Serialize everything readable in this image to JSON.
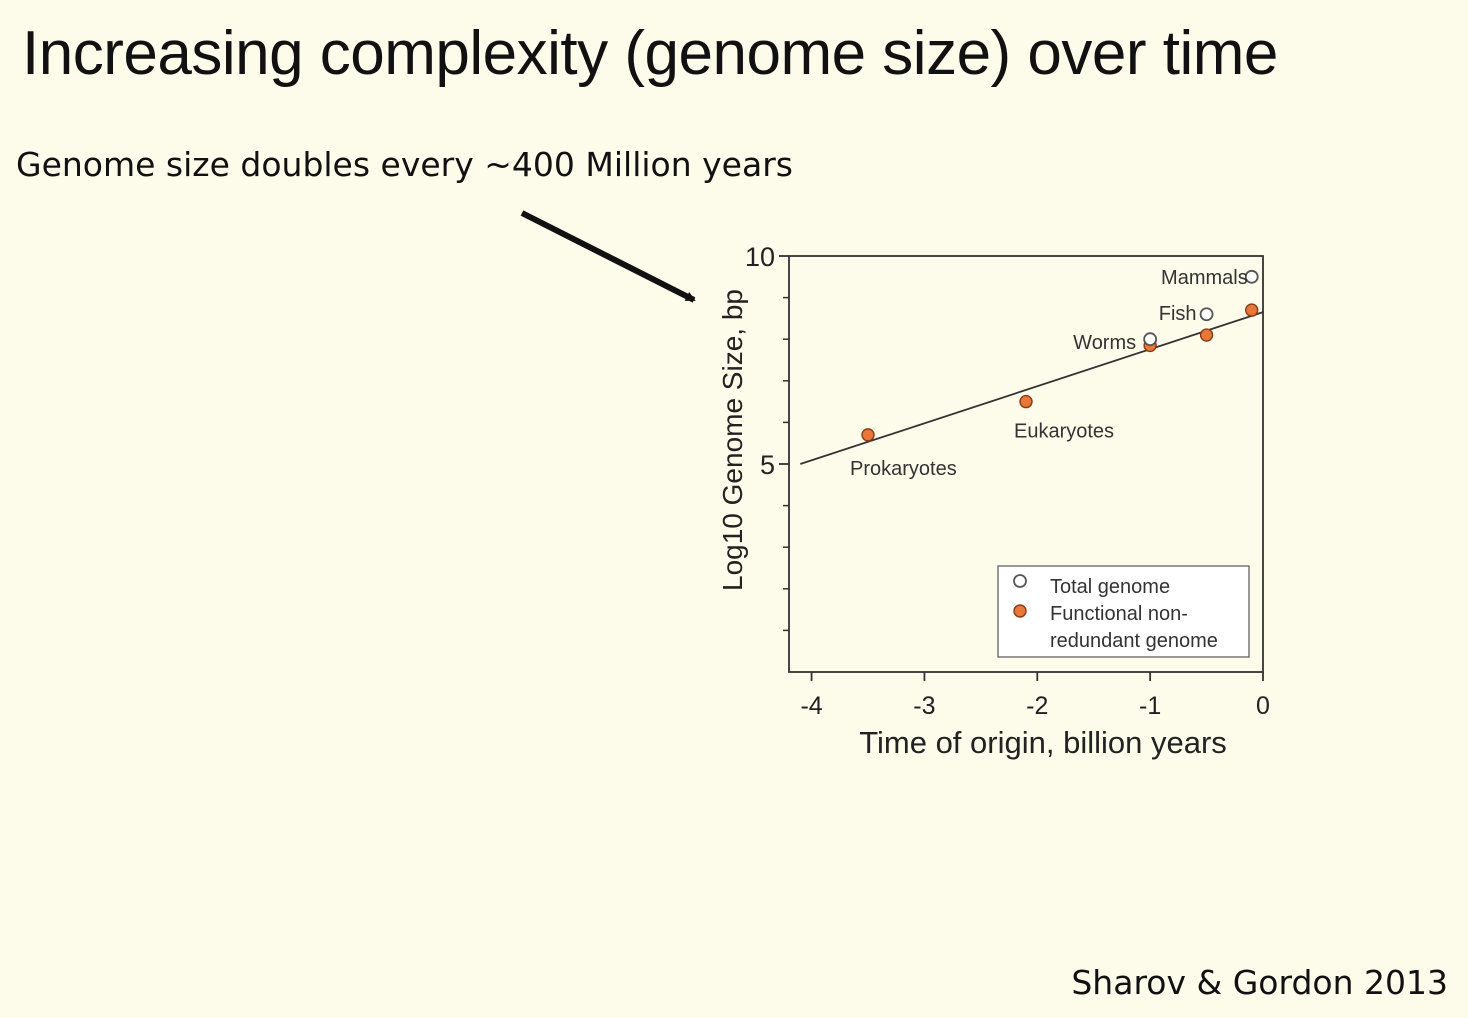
{
  "slide": {
    "title": "Increasing complexity (genome size) over time",
    "subtitle": "Genome size doubles every ~400 Million years",
    "citation": "Sharov & Gordon 2013"
  },
  "chart_data": {
    "type": "scatter",
    "xlabel": "Time of origin, billion years",
    "ylabel": "Log10 Genome Size, bp",
    "xlim": [
      -4.2,
      0
    ],
    "ylim": [
      0,
      10
    ],
    "x_ticks": [
      -4,
      -3,
      -2,
      -1,
      0
    ],
    "x_tick_labels": [
      "-4",
      "-3",
      "-2",
      "-1",
      "0"
    ],
    "y_ticks": [
      5,
      10
    ],
    "y_tick_labels": [
      "5",
      "10"
    ],
    "y_minor_ticks": [
      1,
      2,
      3,
      4,
      6,
      7,
      8,
      9
    ],
    "grid": false,
    "legend_position": "bottom-right",
    "series": [
      {
        "name": "Total genome",
        "marker": "open-circle",
        "color": "#ffffff",
        "points": [
          {
            "x": -1.0,
            "y": 8.0,
            "label": "Worms"
          },
          {
            "x": -0.5,
            "y": 8.6,
            "label": "Fish"
          },
          {
            "x": -0.1,
            "y": 9.5,
            "label": "Mammals"
          }
        ]
      },
      {
        "name": "Functional non-redundant genome",
        "legend_lines": [
          "Functional non-",
          "redundant genome"
        ],
        "marker": "filled-circle",
        "color": "#e8773a",
        "points": [
          {
            "x": -3.5,
            "y": 5.7,
            "label": "Prokaryotes"
          },
          {
            "x": -2.1,
            "y": 6.5,
            "label": "Eukaryotes"
          },
          {
            "x": -1.0,
            "y": 7.85,
            "label": ""
          },
          {
            "x": -0.5,
            "y": 8.1,
            "label": ""
          },
          {
            "x": -0.1,
            "y": 8.7,
            "label": ""
          }
        ]
      }
    ],
    "trendline": {
      "x1": -4.1,
      "y1": 5.0,
      "x2": 0,
      "y2": 8.65
    }
  }
}
